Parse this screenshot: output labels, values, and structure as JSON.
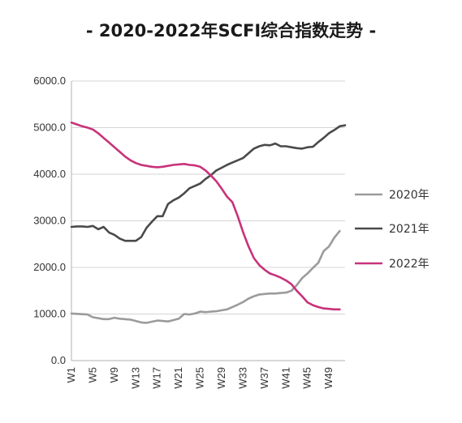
{
  "chart_data": {
    "type": "line",
    "title": "- 2020-2022年SCFI综合指数走势 -",
    "xlabel": "",
    "ylabel": "",
    "ylim": [
      0,
      6000
    ],
    "yticks": [
      "0.0",
      "1000.0",
      "2000.0",
      "3000.0",
      "4000.0",
      "5000.0",
      "6000.0"
    ],
    "ytick_values": [
      0,
      1000,
      2000,
      3000,
      4000,
      5000,
      6000
    ],
    "xticks": [
      "W1",
      "W5",
      "W9",
      "W13",
      "W17",
      "W21",
      "W25",
      "W29",
      "W33",
      "W37",
      "W41",
      "W45",
      "W49"
    ],
    "xtick_weeks": [
      1,
      5,
      9,
      13,
      17,
      21,
      25,
      29,
      33,
      37,
      41,
      45,
      49
    ],
    "grid": "horizontal",
    "legend_position": "right",
    "series": [
      {
        "name": "2020年",
        "color": "#9b9b9b",
        "x": [
          1,
          4,
          5,
          7,
          8,
          9,
          10,
          12,
          13,
          14,
          15,
          17,
          18,
          19,
          20,
          21,
          22,
          23,
          24,
          25,
          26,
          27,
          28,
          29,
          30,
          31,
          32,
          33,
          34,
          35,
          36,
          37,
          38,
          39,
          40,
          41,
          42,
          43,
          44,
          45,
          46,
          47,
          48,
          49,
          50,
          51
        ],
        "y": [
          1010,
          990,
          930,
          890,
          890,
          920,
          900,
          880,
          850,
          820,
          810,
          860,
          850,
          840,
          870,
          900,
          1000,
          990,
          1010,
          1050,
          1040,
          1050,
          1060,
          1080,
          1100,
          1150,
          1200,
          1260,
          1330,
          1380,
          1420,
          1430,
          1440,
          1440,
          1450,
          1460,
          1500,
          1620,
          1770,
          1870,
          1990,
          2100,
          2350,
          2450,
          2640,
          2780
        ]
      },
      {
        "name": "2021年",
        "color": "#4a4a4a",
        "x": [
          1,
          2,
          3,
          4,
          5,
          6,
          7,
          8,
          9,
          10,
          11,
          12,
          13,
          14,
          15,
          16,
          17,
          18,
          19,
          20,
          21,
          22,
          23,
          24,
          25,
          26,
          27,
          28,
          29,
          30,
          31,
          32,
          33,
          34,
          35,
          36,
          37,
          38,
          39,
          40,
          41,
          42,
          43,
          44,
          45,
          46,
          47,
          48,
          49,
          50,
          51,
          52
        ],
        "y": [
          2870,
          2880,
          2880,
          2870,
          2890,
          2820,
          2870,
          2750,
          2700,
          2620,
          2570,
          2570,
          2570,
          2650,
          2850,
          2980,
          3100,
          3100,
          3360,
          3440,
          3500,
          3590,
          3700,
          3750,
          3800,
          3900,
          3980,
          4080,
          4140,
          4200,
          4250,
          4300,
          4350,
          4450,
          4550,
          4600,
          4630,
          4620,
          4660,
          4600,
          4600,
          4580,
          4560,
          4550,
          4580,
          4590,
          4690,
          4780,
          4880,
          4950,
          5030,
          5050
        ]
      },
      {
        "name": "2022年",
        "color": "#c8327a",
        "x": [
          1,
          2,
          3,
          4,
          5,
          6,
          7,
          8,
          9,
          10,
          11,
          12,
          13,
          14,
          15,
          16,
          17,
          18,
          19,
          20,
          21,
          22,
          23,
          24,
          25,
          26,
          27,
          28,
          29,
          30,
          31,
          32,
          33,
          34,
          35,
          36,
          37,
          38,
          39,
          40,
          41,
          42,
          43,
          44,
          45,
          46,
          47,
          48,
          49,
          50,
          51
        ],
        "y": [
          5110,
          5070,
          5030,
          5000,
          4960,
          4880,
          4780,
          4680,
          4580,
          4480,
          4380,
          4300,
          4240,
          4200,
          4180,
          4160,
          4150,
          4160,
          4180,
          4200,
          4210,
          4220,
          4200,
          4190,
          4160,
          4080,
          3970,
          3850,
          3690,
          3520,
          3400,
          3100,
          2750,
          2450,
          2200,
          2050,
          1950,
          1870,
          1830,
          1780,
          1720,
          1640,
          1500,
          1380,
          1250,
          1190,
          1150,
          1120,
          1110,
          1100,
          1100
        ]
      }
    ]
  }
}
